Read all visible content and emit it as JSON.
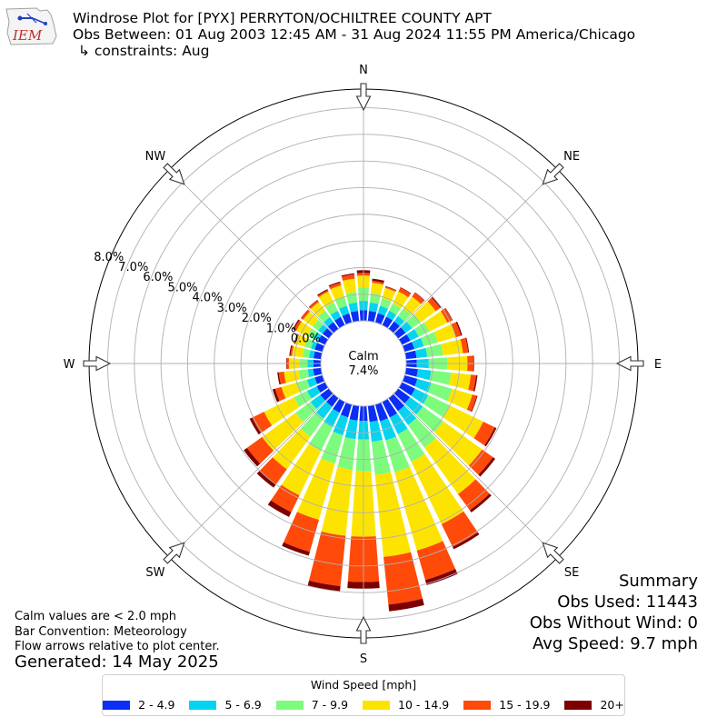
{
  "header": {
    "logo_text": "IEM",
    "title": "Windrose Plot for [PYX] PERRYTON/OCHILTREE COUNTY APT",
    "subtitle": "Obs Between: 01 Aug 2003 12:45 AM - 31 Aug 2024 11:55 PM America/Chicago",
    "constraints": "↳ constraints: Aug"
  },
  "summary": {
    "heading": "Summary",
    "obs_used": "Obs Used: 11443",
    "obs_without_wind": "Obs Without Wind: 0",
    "avg_speed": "Avg Speed: 9.7 mph"
  },
  "notes": {
    "calm_note": "Calm values are < 2.0 mph",
    "bar_convention": "Bar Convention: Meteorology",
    "flow_arrows": "Flow arrows relative to plot center.",
    "generated": "Generated: 14 May 2025"
  },
  "chart_data": {
    "type": "windrose",
    "calm_label": "Calm",
    "calm_value": "7.4%",
    "calm_percent": 7.4,
    "radial_tick_labels": [
      "0.0%",
      "1.0%",
      "2.0%",
      "3.0%",
      "4.0%",
      "5.0%",
      "6.0%",
      "7.0%",
      "8.0%"
    ],
    "radial_ticks": [
      0,
      1,
      2,
      3,
      4,
      5,
      6,
      7,
      8
    ],
    "rmax": 8.7,
    "grid": true,
    "compass_labels": [
      {
        "label": "N",
        "angle": 0
      },
      {
        "label": "NE",
        "angle": 45
      },
      {
        "label": "E",
        "angle": 90
      },
      {
        "label": "SE",
        "angle": 135
      },
      {
        "label": "S",
        "angle": 180
      },
      {
        "label": "SW",
        "angle": 225
      },
      {
        "label": "W",
        "angle": 270
      },
      {
        "label": "NW",
        "angle": 315
      }
    ],
    "legend": {
      "title": "Wind Speed [mph]",
      "placement": "bottom-center",
      "bins": [
        {
          "label": "2 - 4.9",
          "color": "#0a2ef5"
        },
        {
          "label": "5 - 6.9",
          "color": "#05d3f0"
        },
        {
          "label": "7 - 9.9",
          "color": "#7dfb7d"
        },
        {
          "label": "10 - 14.9",
          "color": "#fde400"
        },
        {
          "label": "15 - 19.9",
          "color": "#ff4a0a"
        },
        {
          "label": "20+",
          "color": "#7d0000"
        }
      ]
    },
    "directions_deg": [
      0,
      10,
      20,
      30,
      40,
      50,
      60,
      70,
      80,
      90,
      100,
      110,
      120,
      130,
      140,
      150,
      160,
      170,
      180,
      190,
      200,
      210,
      220,
      230,
      240,
      250,
      260,
      270,
      280,
      290,
      300,
      310,
      320,
      330,
      340,
      350
    ],
    "cumulative_percent": [
      [
        0.4,
        0.75,
        1.25,
        1.7,
        1.8,
        1.9
      ],
      [
        0.38,
        0.7,
        1.05,
        1.45,
        1.52,
        1.6
      ],
      [
        0.36,
        0.65,
        0.95,
        1.35,
        1.4,
        1.42
      ],
      [
        0.35,
        0.6,
        0.9,
        1.4,
        1.56,
        1.58
      ],
      [
        0.35,
        0.6,
        0.95,
        1.5,
        1.68,
        1.7
      ],
      [
        0.35,
        0.65,
        1.05,
        1.75,
        1.95,
        2.0
      ],
      [
        0.35,
        0.7,
        1.15,
        1.9,
        2.1,
        2.12
      ],
      [
        0.38,
        0.75,
        1.3,
        2.0,
        2.2,
        2.25
      ],
      [
        0.4,
        0.8,
        1.4,
        2.15,
        2.35,
        2.38
      ],
      [
        0.4,
        0.85,
        1.55,
        2.3,
        2.52,
        2.55
      ],
      [
        0.45,
        0.95,
        1.7,
        2.45,
        2.65,
        2.7
      ],
      [
        0.5,
        1.05,
        1.85,
        2.65,
        2.82,
        2.85
      ],
      [
        0.55,
        1.1,
        2.0,
        3.4,
        3.88,
        3.95
      ],
      [
        0.55,
        1.15,
        2.1,
        3.9,
        4.4,
        4.5
      ],
      [
        0.6,
        1.25,
        2.3,
        4.45,
        5.2,
        5.3
      ],
      [
        0.65,
        1.35,
        2.5,
        5.1,
        6.05,
        6.15
      ],
      [
        0.65,
        1.4,
        2.65,
        5.7,
        6.85,
        7.05
      ],
      [
        0.6,
        1.35,
        2.6,
        5.7,
        7.5,
        7.75
      ],
      [
        0.55,
        1.25,
        2.45,
        4.9,
        6.6,
        6.85
      ],
      [
        0.55,
        1.25,
        2.4,
        4.9,
        6.8,
        7.0
      ],
      [
        0.5,
        1.2,
        2.3,
        4.5,
        5.75,
        5.9
      ],
      [
        0.45,
        1.05,
        2.05,
        3.9,
        4.6,
        4.8
      ],
      [
        0.4,
        0.95,
        1.8,
        3.3,
        4.0,
        4.15
      ],
      [
        0.4,
        0.85,
        1.55,
        3.1,
        3.8,
        3.95
      ],
      [
        0.35,
        0.75,
        1.3,
        2.55,
        3.05,
        3.15
      ],
      [
        0.3,
        0.6,
        1.0,
        1.6,
        1.85,
        1.95
      ],
      [
        0.3,
        0.5,
        0.85,
        1.4,
        1.6,
        1.65
      ],
      [
        0.28,
        0.5,
        0.8,
        1.2,
        1.28,
        1.3
      ],
      [
        0.28,
        0.45,
        0.7,
        1.1,
        1.16,
        1.2
      ],
      [
        0.3,
        0.45,
        0.7,
        1.05,
        1.1,
        1.12
      ],
      [
        0.3,
        0.5,
        0.75,
        1.2,
        1.3,
        1.35
      ],
      [
        0.3,
        0.5,
        0.75,
        1.2,
        1.28,
        1.3
      ],
      [
        0.32,
        0.55,
        0.85,
        1.25,
        1.33,
        1.35
      ],
      [
        0.34,
        0.6,
        0.95,
        1.4,
        1.46,
        1.5
      ],
      [
        0.35,
        0.65,
        1.0,
        1.45,
        1.56,
        1.6
      ],
      [
        0.38,
        0.7,
        1.1,
        1.6,
        1.76,
        1.8
      ]
    ]
  }
}
